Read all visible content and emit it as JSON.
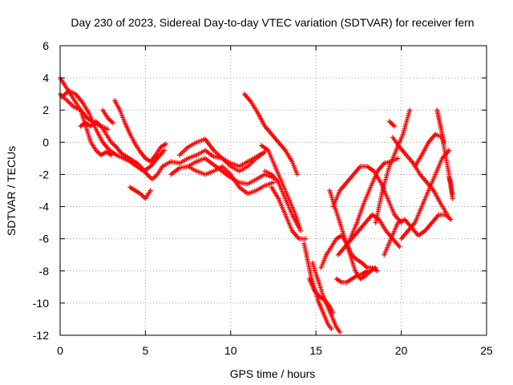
{
  "chart_data": {
    "type": "scatter",
    "title": "Day 230 of 2023, Sidereal Day-to-day VTEC variation (SDTVAR) for receiver fern",
    "xlabel": "GPS time / hours",
    "ylabel": "SDTVAR / TECUs",
    "xlim": [
      0,
      25
    ],
    "ylim": [
      -12,
      6
    ],
    "xticks": [
      "0",
      "5",
      "10",
      "15",
      "20",
      "25"
    ],
    "yticks": [
      "6",
      "4",
      "2",
      "0",
      "-2",
      "-4",
      "-6",
      "-8",
      "-10",
      "-12"
    ],
    "grid": true,
    "marker": "+",
    "color": "#ff0000",
    "series": [
      {
        "x": [
          0.0,
          0.3,
          0.6,
          0.9,
          1.2,
          1.5,
          1.8,
          2.1,
          2.4,
          2.7,
          3.0
        ],
        "y": [
          4.0,
          3.5,
          3.0,
          2.5,
          2.0,
          1.0,
          0.0,
          -0.5,
          -0.8,
          -0.6,
          -0.8
        ]
      },
      {
        "x": [
          0.0,
          0.4,
          0.8,
          1.2,
          1.6,
          2.0,
          2.4,
          2.8
        ],
        "y": [
          3.0,
          2.6,
          2.2,
          2.0,
          1.5,
          1.2,
          1.0,
          0.8
        ]
      },
      {
        "x": [
          0.1,
          0.5,
          0.9,
          1.3,
          1.7,
          2.1,
          2.5,
          2.9,
          3.3,
          3.7,
          4.1,
          4.5,
          4.9,
          5.3,
          5.7,
          6.1
        ],
        "y": [
          2.8,
          3.2,
          3.0,
          2.5,
          1.8,
          0.8,
          0.0,
          -0.5,
          -0.8,
          -1.0,
          -1.2,
          -1.5,
          -1.8,
          -1.5,
          -1.0,
          -0.5
        ]
      },
      {
        "x": [
          1.2,
          1.5,
          1.8,
          2.1,
          2.4,
          2.7,
          3.0,
          3.3,
          3.6,
          3.9,
          4.2,
          4.5,
          4.8,
          5.1,
          5.4,
          5.7,
          6.0
        ],
        "y": [
          1.0,
          1.2,
          1.0,
          1.3,
          1.0,
          0.5,
          0.0,
          -0.3,
          -0.7,
          -0.9,
          -1.1,
          -1.3,
          -1.6,
          -2.0,
          -2.3,
          -2.0,
          -1.5
        ]
      },
      {
        "x": [
          3.2,
          3.5,
          3.8,
          4.1,
          4.4,
          4.7,
          5.0,
          5.3,
          5.6,
          5.9,
          6.2
        ],
        "y": [
          2.6,
          2.0,
          1.2,
          0.5,
          -0.1,
          -0.6,
          -1.0,
          -1.2,
          -0.8,
          -0.3,
          -0.1
        ]
      },
      {
        "x": [
          2.5,
          2.8,
          3.1
        ],
        "y": [
          2.0,
          1.5,
          1.2
        ]
      },
      {
        "x": [
          4.1,
          4.4,
          4.7,
          5.0,
          5.3
        ],
        "y": [
          -2.8,
          -3.0,
          -3.2,
          -3.5,
          -3.0
        ]
      },
      {
        "x": [
          6.0,
          6.5,
          7.0,
          7.5,
          8.0,
          8.5,
          9.0,
          9.5,
          10.0,
          10.5,
          11.0,
          11.5,
          12.0
        ],
        "y": [
          -1.5,
          -1.2,
          -1.3,
          -1.0,
          -0.8,
          -0.5,
          -0.9,
          -1.0,
          -1.3,
          -1.5,
          -1.2,
          -0.9,
          -0.6
        ]
      },
      {
        "x": [
          6.5,
          7.0,
          7.5,
          8.0,
          8.5,
          9.0,
          9.5,
          10.0,
          10.5,
          11.0,
          11.5,
          12.0,
          12.5
        ],
        "y": [
          -2.0,
          -1.6,
          -1.5,
          -1.2,
          -1.0,
          -1.4,
          -1.8,
          -2.2,
          -2.5,
          -2.6,
          -2.3,
          -2.0,
          -2.2
        ]
      },
      {
        "x": [
          7.0,
          7.5,
          8.0,
          8.5,
          9.0,
          9.5,
          10.0,
          10.5,
          11.0,
          11.5,
          12.0
        ],
        "y": [
          -0.8,
          -0.3,
          0.0,
          0.2,
          -0.5,
          -1.0,
          -1.5,
          -1.8,
          -1.5,
          -1.0,
          -0.6
        ]
      },
      {
        "x": [
          7.5,
          8.0,
          8.5,
          9.0,
          9.5,
          10.0,
          10.5,
          11.0,
          11.5,
          12.0,
          12.5
        ],
        "y": [
          -1.5,
          -1.8,
          -2.0,
          -1.8,
          -1.5,
          -2.0,
          -2.8,
          -3.2,
          -3.0,
          -2.7,
          -2.5
        ]
      },
      {
        "x": [
          10.8,
          11.2,
          11.6,
          12.0,
          12.4,
          12.8,
          13.2,
          13.6,
          13.9
        ],
        "y": [
          3.0,
          2.5,
          1.8,
          1.0,
          0.5,
          0.0,
          -0.5,
          -1.2,
          -2.0
        ]
      },
      {
        "x": [
          11.8,
          12.2,
          12.6,
          13.0,
          13.4,
          13.8,
          14.1
        ],
        "y": [
          -0.2,
          -0.5,
          -1.5,
          -2.5,
          -3.5,
          -4.5,
          -5.5
        ]
      },
      {
        "x": [
          12.0,
          12.4,
          12.8,
          13.2,
          13.6,
          14.0
        ],
        "y": [
          -1.8,
          -2.0,
          -2.5,
          -3.5,
          -4.5,
          -5.3
        ]
      },
      {
        "x": [
          12.4,
          12.8,
          13.2,
          13.6,
          14.0,
          14.4
        ],
        "y": [
          -2.8,
          -3.5,
          -4.5,
          -5.5,
          -6.0,
          -6.0
        ]
      },
      {
        "x": [
          14.3,
          14.5,
          14.7,
          14.9,
          15.1,
          15.3,
          15.5,
          15.7,
          15.9
        ],
        "y": [
          -6.3,
          -7.3,
          -8.3,
          -9.0,
          -9.8,
          -10.3,
          -10.8,
          -11.3,
          -11.6
        ]
      },
      {
        "x": [
          14.8,
          15.0,
          15.2,
          15.4,
          15.6,
          15.8,
          16.0,
          16.2,
          16.4
        ],
        "y": [
          -7.5,
          -8.2,
          -8.8,
          -9.5,
          -10.0,
          -10.5,
          -11.0,
          -11.5,
          -11.8
        ]
      },
      {
        "x": [
          14.6,
          14.9,
          15.2,
          15.5,
          15.8,
          16.0
        ],
        "y": [
          -8.5,
          -9.2,
          -9.6,
          -9.8,
          -10.2,
          -10.6
        ]
      },
      {
        "x": [
          15.3,
          15.6,
          15.9,
          16.2,
          16.5,
          16.8,
          17.1,
          17.4,
          17.7,
          18.0,
          18.3,
          18.6
        ],
        "y": [
          -7.8,
          -7.0,
          -6.5,
          -6.0,
          -5.8,
          -6.3,
          -7.0,
          -7.3,
          -7.5,
          -7.8,
          -7.8,
          -8.0
        ]
      },
      {
        "x": [
          15.8,
          16.1,
          16.4,
          16.7,
          17.0,
          17.3,
          17.6,
          17.9,
          18.2,
          18.5
        ],
        "y": [
          -3.0,
          -4.0,
          -5.0,
          -6.0,
          -7.0,
          -8.0,
          -8.5,
          -8.3,
          -8.0,
          -7.8
        ]
      },
      {
        "x": [
          16.2,
          16.5,
          16.8,
          17.1,
          17.4,
          17.7,
          18.0
        ],
        "y": [
          -8.5,
          -8.7,
          -8.7,
          -8.5,
          -8.3,
          -8.2,
          -8.0
        ]
      },
      {
        "x": [
          16.0,
          16.4,
          16.8,
          17.2,
          17.6,
          18.0,
          18.4,
          18.8,
          19.2,
          19.6,
          20.0
        ],
        "y": [
          -4.0,
          -3.0,
          -2.5,
          -2.0,
          -1.5,
          -1.5,
          -1.8,
          -2.5,
          -3.5,
          -4.5,
          -5.0
        ]
      },
      {
        "x": [
          16.3,
          16.7,
          17.1,
          17.5,
          17.9,
          18.3,
          18.7,
          19.1,
          19.5,
          19.9
        ],
        "y": [
          -7.0,
          -6.5,
          -6.0,
          -5.5,
          -5.0,
          -4.5,
          -4.8,
          -5.5,
          -6.0,
          -6.5
        ]
      },
      {
        "x": [
          17.0,
          17.4,
          17.8,
          18.2,
          18.6,
          19.0,
          19.4,
          19.8
        ],
        "y": [
          -6.0,
          -5.0,
          -3.8,
          -2.8,
          -1.8,
          -1.3,
          -1.2,
          -1.0
        ]
      },
      {
        "x": [
          18.5,
          18.9,
          19.3,
          19.7,
          20.1,
          20.5
        ],
        "y": [
          -5.0,
          -3.0,
          -1.5,
          -0.5,
          0.5,
          2.0
        ]
      },
      {
        "x": [
          19.5,
          19.9,
          20.3,
          20.7,
          21.1,
          21.5,
          21.9,
          22.3,
          22.7
        ],
        "y": [
          0.3,
          -0.3,
          -0.8,
          -1.3,
          -2.0,
          -2.5,
          -3.0,
          -3.8,
          -4.5
        ]
      },
      {
        "x": [
          19.0,
          19.4,
          19.8,
          20.2,
          20.6,
          21.0,
          21.4,
          21.8,
          22.2,
          22.6,
          22.9
        ],
        "y": [
          -7.0,
          -6.0,
          -5.0,
          -4.8,
          -5.3,
          -5.8,
          -5.5,
          -5.0,
          -4.5,
          -4.5,
          -4.8
        ]
      },
      {
        "x": [
          20.0,
          20.4,
          20.8,
          21.2,
          21.6,
          22.0,
          22.4,
          22.8
        ],
        "y": [
          -6.0,
          -5.5,
          -5.0,
          -4.0,
          -3.0,
          -2.0,
          -1.0,
          -0.5
        ]
      },
      {
        "x": [
          20.8,
          21.2,
          21.6,
          22.0,
          22.4,
          22.8,
          23.0
        ],
        "y": [
          -1.5,
          -0.8,
          0.0,
          0.5,
          0.3,
          -2.0,
          -3.5
        ]
      },
      {
        "x": [
          22.1,
          22.2,
          22.3,
          22.4,
          22.5
        ],
        "y": [
          2.0,
          1.5,
          1.0,
          0.5,
          0.0
        ]
      },
      {
        "x": [
          22.8,
          22.9,
          23.0
        ],
        "y": [
          -2.2,
          -2.5,
          -3.2
        ]
      },
      {
        "x": [
          19.3,
          19.6
        ],
        "y": [
          1.3,
          1.0
        ]
      }
    ]
  }
}
